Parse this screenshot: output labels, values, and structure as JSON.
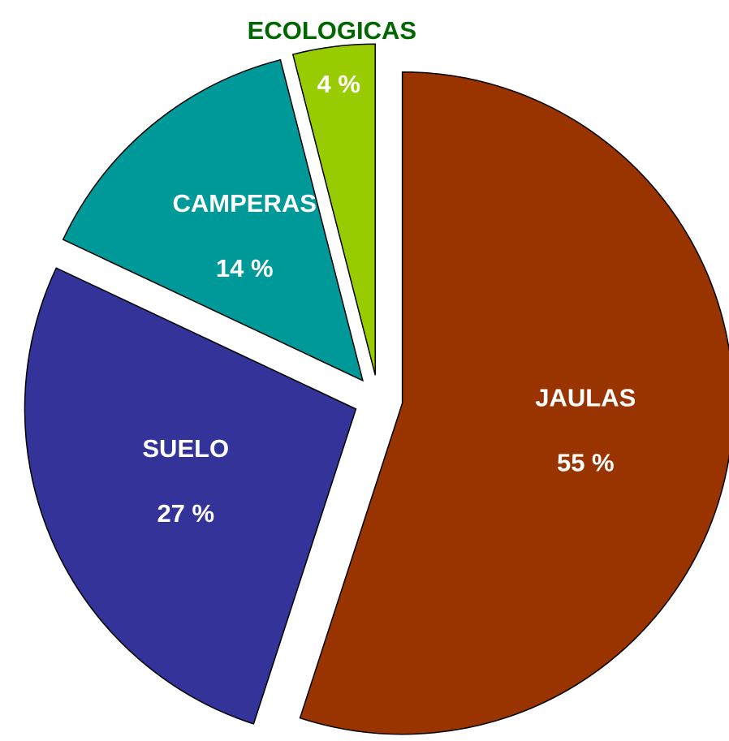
{
  "chart_data": {
    "type": "pie",
    "categories": [
      "JAULAS",
      "SUELO",
      "CAMPERAS",
      "ECOLOGICAS"
    ],
    "values": [
      55,
      27,
      14,
      4
    ],
    "value_labels": [
      "55 %",
      "27 %",
      "14 %",
      "4 %"
    ],
    "colors": [
      "#993300",
      "#333399",
      "#009999",
      "#99cc00"
    ],
    "outside_label_color": "#006600"
  }
}
